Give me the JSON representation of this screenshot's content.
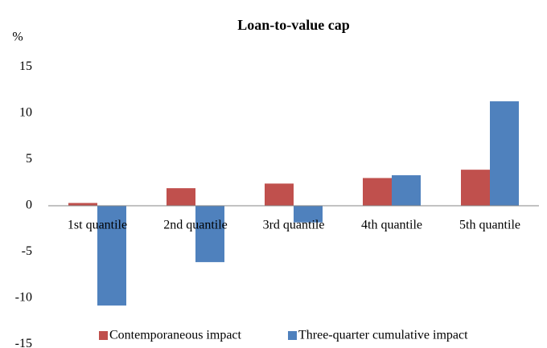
{
  "chart_data": {
    "type": "bar",
    "title": "Loan-to-value cap",
    "y_axis_label": "%",
    "categories": [
      "1st quantile",
      "2nd quantile",
      "3rd quantile",
      "4th quantile",
      "5th quantile"
    ],
    "series": [
      {
        "name": "Contemporaneous impact",
        "color": "#c0504d",
        "values": [
          0.3,
          1.9,
          2.4,
          3.0,
          3.9
        ]
      },
      {
        "name": "Three-quarter cumulative impact",
        "color": "#4f81bd",
        "values": [
          -10.8,
          -6.1,
          -1.8,
          3.3,
          11.3
        ]
      }
    ],
    "ylim": [
      -15,
      15
    ],
    "yticks": [
      -15,
      -10,
      -5,
      0,
      5,
      10,
      15
    ],
    "grid": false,
    "legend": "bottom"
  }
}
